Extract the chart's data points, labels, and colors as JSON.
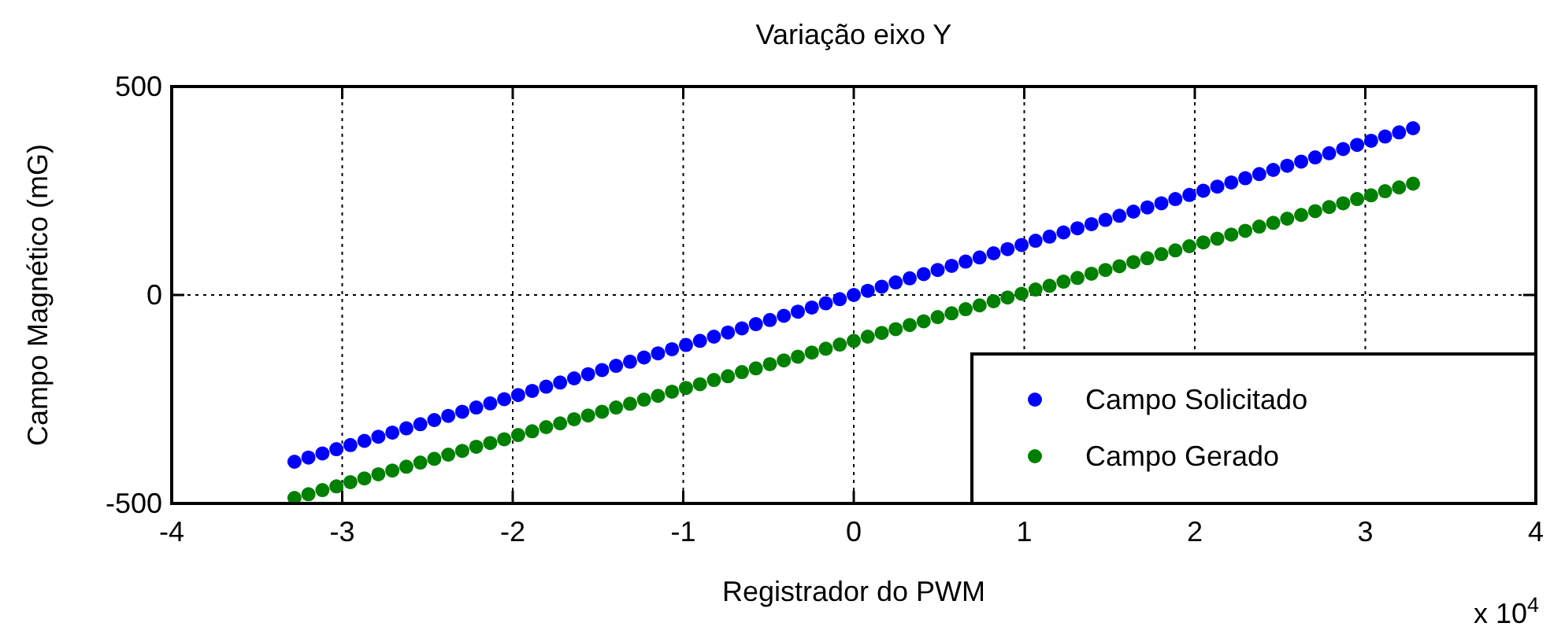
{
  "chart_data": {
    "type": "scatter",
    "title": "Variação eixo Y",
    "xlabel": "Registrador do PWM",
    "ylabel": "Campo Magnético (mG)",
    "annotations": [
      "x 10$^{4}$"
    ],
    "x": [
      -3.28,
      -3.198,
      -3.116,
      -3.034,
      -2.952,
      -2.87,
      -2.788,
      -2.706,
      -2.624,
      -2.542,
      -2.46,
      -2.378,
      -2.296,
      -2.214,
      -2.132,
      -2.05,
      -1.968,
      -1.886,
      -1.804,
      -1.722,
      -1.64,
      -1.558,
      -1.476,
      -1.394,
      -1.312,
      -1.23,
      -1.148,
      -1.066,
      -0.984,
      -0.902,
      -0.82,
      -0.738,
      -0.656,
      -0.574,
      -0.492,
      -0.41,
      -0.328,
      -0.246,
      -0.164,
      -0.082,
      0,
      0.082,
      0.164,
      0.246,
      0.328,
      0.41,
      0.492,
      0.574,
      0.656,
      0.738,
      0.82,
      0.902,
      0.984,
      1.066,
      1.148,
      1.23,
      1.312,
      1.394,
      1.476,
      1.558,
      1.64,
      1.722,
      1.804,
      1.886,
      1.968,
      2.05,
      2.132,
      2.214,
      2.296,
      2.378,
      2.46,
      2.542,
      2.624,
      2.706,
      2.788,
      2.87,
      2.952,
      3.034,
      3.116,
      3.198,
      3.28
    ],
    "series": [
      {
        "name": "Campo Solicitado",
        "color": "#0000ff",
        "values": [
          -400,
          -390,
          -380,
          -370,
          -360,
          -350,
          -340,
          -330,
          -320,
          -310,
          -300,
          -290,
          -280,
          -270,
          -260,
          -250,
          -240,
          -230,
          -220,
          -210,
          -200,
          -190,
          -180,
          -170,
          -160,
          -150,
          -140,
          -130,
          -120,
          -110,
          -100,
          -90,
          -80,
          -70,
          -60,
          -50,
          -40,
          -30,
          -20,
          -10,
          0,
          10,
          20,
          30,
          40,
          50,
          60,
          70,
          80,
          90,
          100,
          110,
          120,
          130,
          140,
          150,
          160,
          170,
          180,
          190,
          200,
          210,
          220,
          230,
          240,
          250,
          260,
          270,
          280,
          290,
          300,
          310,
          320,
          330,
          340,
          350,
          360,
          370,
          380,
          390,
          400
        ]
      },
      {
        "name": "Campo Gerado",
        "color": "#008000",
        "values": [
          -487,
          -478,
          -468,
          -459,
          -449,
          -440,
          -430,
          -421,
          -412,
          -402,
          -393,
          -383,
          -374,
          -364,
          -355,
          -346,
          -336,
          -327,
          -317,
          -308,
          -298,
          -289,
          -280,
          -270,
          -261,
          -251,
          -242,
          -232,
          -223,
          -214,
          -204,
          -195,
          -185,
          -176,
          -166,
          -157,
          -148,
          -138,
          -129,
          -119,
          -110,
          -100,
          -91,
          -82,
          -72,
          -63,
          -53,
          -44,
          -34,
          -25,
          -15,
          -6,
          3,
          13,
          22,
          32,
          41,
          51,
          60,
          69,
          79,
          88,
          98,
          107,
          117,
          126,
          135,
          145,
          154,
          164,
          173,
          183,
          192,
          201,
          211,
          220,
          230,
          239,
          249,
          258,
          267
        ]
      }
    ],
    "xlim": [
      -4,
      4
    ],
    "xticks": [
      -4,
      -3,
      -2,
      -1,
      0,
      1,
      2,
      3,
      4
    ],
    "ylim": [
      -500,
      500
    ],
    "yticks": [
      -500,
      0,
      500
    ],
    "grid": true,
    "legend": "bottom right",
    "marker": "circle"
  }
}
